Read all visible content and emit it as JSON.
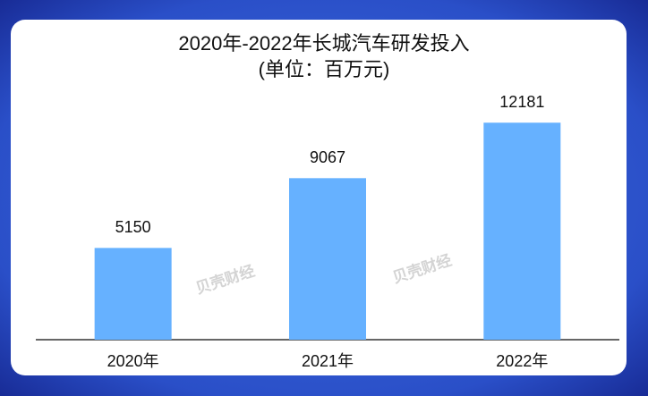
{
  "chart_data": {
    "type": "bar",
    "title": "2020年-2022年长城汽车研发投入",
    "subtitle": "(单位：百万元)",
    "categories": [
      "2020年",
      "2021年",
      "2022年"
    ],
    "values": [
      5150,
      9067,
      12181
    ],
    "color": "#66b1ff",
    "ylim": [
      0,
      14000
    ],
    "watermarks": [
      "贝壳财经",
      "贝壳财经"
    ]
  }
}
